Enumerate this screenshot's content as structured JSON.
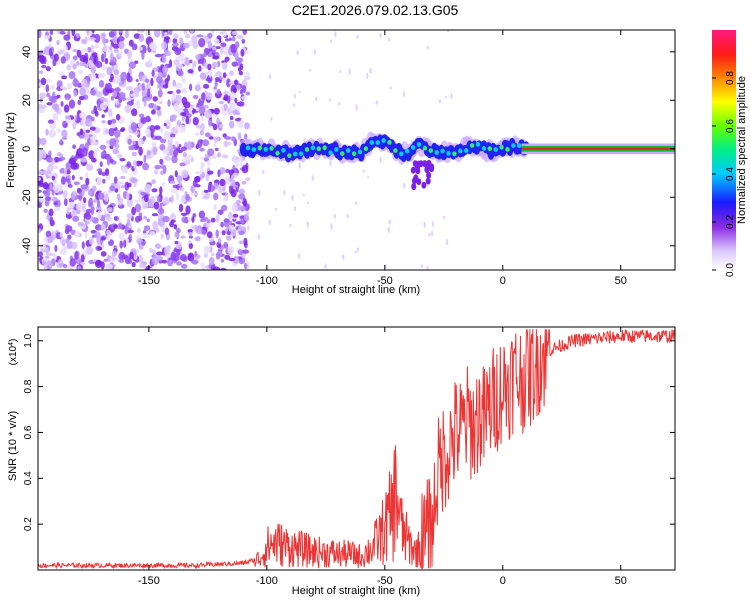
{
  "title": "C2E1.2026.079.02.13.G05",
  "chart_data": [
    {
      "type": "heatmap",
      "xlabel": "Height of straight line (km)",
      "ylabel": "Frequency (Hz)",
      "xlim": [
        -197,
        73
      ],
      "ylim": [
        -50,
        49
      ],
      "xticks": [
        -150,
        -100,
        -50,
        0,
        50
      ],
      "yticks": [
        -40,
        -20,
        0,
        20,
        40
      ],
      "xtick_labels": [
        "-150",
        "-100",
        "-50",
        "0",
        "50"
      ],
      "ytick_labels": [
        "-40",
        "-20",
        "0",
        "20",
        "40"
      ],
      "noise_region_x": [
        -197,
        -108
      ],
      "signal_track": [
        {
          "x": -110,
          "y": 0
        },
        {
          "x": -100,
          "y": 0
        },
        {
          "x": -90,
          "y": -2
        },
        {
          "x": -80,
          "y": 0
        },
        {
          "x": -70,
          "y": -1
        },
        {
          "x": -60,
          "y": -2
        },
        {
          "x": -55,
          "y": 3
        },
        {
          "x": -50,
          "y": 4
        },
        {
          "x": -45,
          "y": -1
        },
        {
          "x": -40,
          "y": -2
        },
        {
          "x": -35,
          "y": 2
        },
        {
          "x": -30,
          "y": -1
        },
        {
          "x": -25,
          "y": -2
        },
        {
          "x": -20,
          "y": -1
        },
        {
          "x": -15,
          "y": 0
        },
        {
          "x": -10,
          "y": 1
        },
        {
          "x": -5,
          "y": -1
        },
        {
          "x": 0,
          "y": 0
        },
        {
          "x": 5,
          "y": 1
        },
        {
          "x": 10,
          "y": 0
        },
        {
          "x": 73,
          "y": 0
        }
      ],
      "colorbar": {
        "label": "Normalized spectral amplitude",
        "range": [
          0,
          1
        ],
        "ticks": [
          0.0,
          0.2,
          0.4,
          0.6,
          0.8
        ],
        "tick_labels": [
          "0.0",
          "0.2",
          "0.4",
          "0.6",
          "0.8"
        ]
      }
    },
    {
      "type": "line",
      "xlabel": "Height of straight line (km)",
      "ylabel": "SNR (10 * v/v)",
      "multiplier_label": "(x10",
      "multiplier_exp": "4",
      "multiplier_close": ")",
      "xlim": [
        -197,
        73
      ],
      "ylim": [
        0,
        1.06
      ],
      "xticks": [
        -150,
        -100,
        -50,
        0,
        50
      ],
      "yticks": [
        0.2,
        0.4,
        0.6,
        0.8,
        1.0
      ],
      "xtick_labels": [
        "-150",
        "-100",
        "-50",
        "0",
        "50"
      ],
      "ytick_labels": [
        "0.2",
        "0.4",
        "0.6",
        "0.8",
        "1.0"
      ],
      "series": [
        {
          "name": "SNR",
          "color": "#ee3333",
          "x": [
            -197,
            -160,
            -130,
            -110,
            -103,
            -100,
            -97,
            -90,
            -80,
            -70,
            -65,
            -60,
            -55,
            -52,
            -50,
            -47,
            -45,
            -43,
            -40,
            -37,
            -35,
            -32,
            -30,
            -28,
            -25,
            -22,
            -20,
            -18,
            -15,
            -12,
            -10,
            -8,
            -5,
            -3,
            0,
            3,
            5,
            8,
            10,
            12,
            15,
            18,
            20,
            25,
            30,
            40,
            50,
            60,
            73
          ],
          "y": [
            0.02,
            0.02,
            0.02,
            0.03,
            0.05,
            0.1,
            0.12,
            0.1,
            0.08,
            0.07,
            0.07,
            0.06,
            0.1,
            0.15,
            0.18,
            0.25,
            0.35,
            0.18,
            0.12,
            0.08,
            0.1,
            0.15,
            0.2,
            0.4,
            0.5,
            0.55,
            0.6,
            0.6,
            0.65,
            0.62,
            0.68,
            0.65,
            0.72,
            0.75,
            0.8,
            0.82,
            0.85,
            0.83,
            0.88,
            0.86,
            0.92,
            0.94,
            0.96,
            0.98,
            1.0,
            1.01,
            1.02,
            1.02,
            1.02
          ]
        }
      ]
    }
  ]
}
